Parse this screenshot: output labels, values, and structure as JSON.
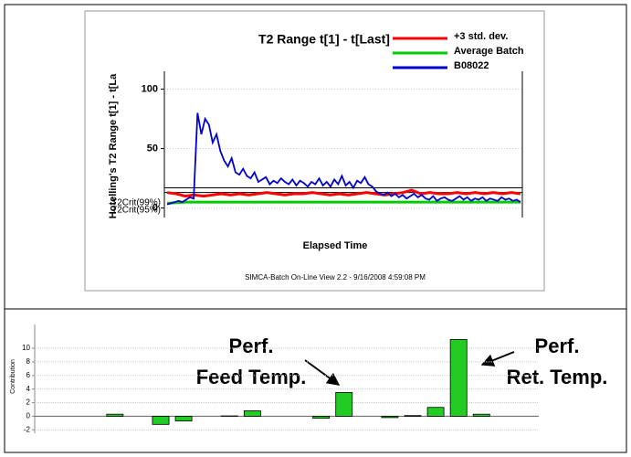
{
  "chart_data": [
    {
      "type": "line",
      "title": "T2 Range t[1] - t[Last]",
      "y_label": "Hotelling's T2 Range t[1] - t[La",
      "x_label": "Elapsed Time",
      "footer": "SIMCA-Batch On-Line View 2.2 - 9/16/2008 4:59:08 PM",
      "ylim": [
        -8,
        115
      ],
      "yticks": [
        0,
        50,
        100
      ],
      "legend": "top-right",
      "critical_lines": [
        {
          "label": "T2Crit(99%)",
          "value": 17
        },
        {
          "label": "T2Crit(95%)",
          "value": 13
        }
      ],
      "series": [
        {
          "name": "+3 std. dev.",
          "color": "#ff0000",
          "values": [
            13,
            12,
            10,
            11,
            10,
            11,
            12,
            11,
            12,
            11,
            12,
            13,
            12,
            11,
            12,
            12,
            13,
            12,
            11,
            12,
            11,
            12,
            13,
            12,
            11,
            12,
            13,
            15,
            12,
            13,
            12,
            12,
            13,
            12,
            13,
            12,
            13,
            12,
            13,
            12
          ]
        },
        {
          "name": "Average Batch",
          "color": "#00cc00",
          "values": [
            4,
            5,
            5,
            5,
            5,
            5,
            5,
            5,
            5,
            5,
            5,
            5,
            5,
            5,
            5,
            5,
            5,
            5,
            5,
            5
          ]
        },
        {
          "name": "B08022",
          "color": "#0000cc",
          "values": [
            3,
            4,
            5,
            6,
            5,
            7,
            9,
            8,
            80,
            62,
            75,
            70,
            55,
            62,
            48,
            40,
            35,
            42,
            30,
            28,
            33,
            27,
            25,
            30,
            22,
            24,
            26,
            20,
            23,
            21,
            25,
            22,
            20,
            24,
            19,
            23,
            21,
            18,
            22,
            20,
            25,
            19,
            22,
            18,
            24,
            20,
            27,
            19,
            22,
            17,
            23,
            21,
            26,
            20,
            18,
            14,
            12,
            11,
            13,
            10,
            12,
            9,
            11,
            8,
            10,
            12,
            9,
            11,
            8,
            7,
            10,
            6,
            8,
            9,
            7,
            6,
            8,
            10,
            7,
            9,
            6,
            8,
            7,
            9,
            6,
            8,
            7,
            6,
            9,
            7,
            8,
            6,
            7,
            5
          ]
        }
      ]
    },
    {
      "type": "bar",
      "y_label": "Contribution",
      "ylim": [
        -2.5,
        13.5
      ],
      "yticks": [
        -2,
        0,
        2,
        4,
        6,
        8,
        10
      ],
      "grid": true,
      "color": "#22cc22",
      "categories": [
        null,
        null,
        null,
        null,
        null,
        null,
        null,
        null,
        null,
        null,
        null,
        null,
        null,
        null,
        null,
        null,
        null,
        null,
        null,
        null,
        null,
        null
      ],
      "values": [
        0,
        0,
        0,
        0.3,
        0,
        -1.2,
        -0.7,
        0,
        0.05,
        0.8,
        0,
        0,
        -0.3,
        3.5,
        0,
        -0.2,
        0.1,
        1.3,
        11.3,
        0.3,
        0,
        0
      ],
      "annotations": [
        [
          "Perf.",
          "Feed Temp."
        ],
        [
          "Perf.",
          "Ret. Temp."
        ]
      ]
    }
  ]
}
